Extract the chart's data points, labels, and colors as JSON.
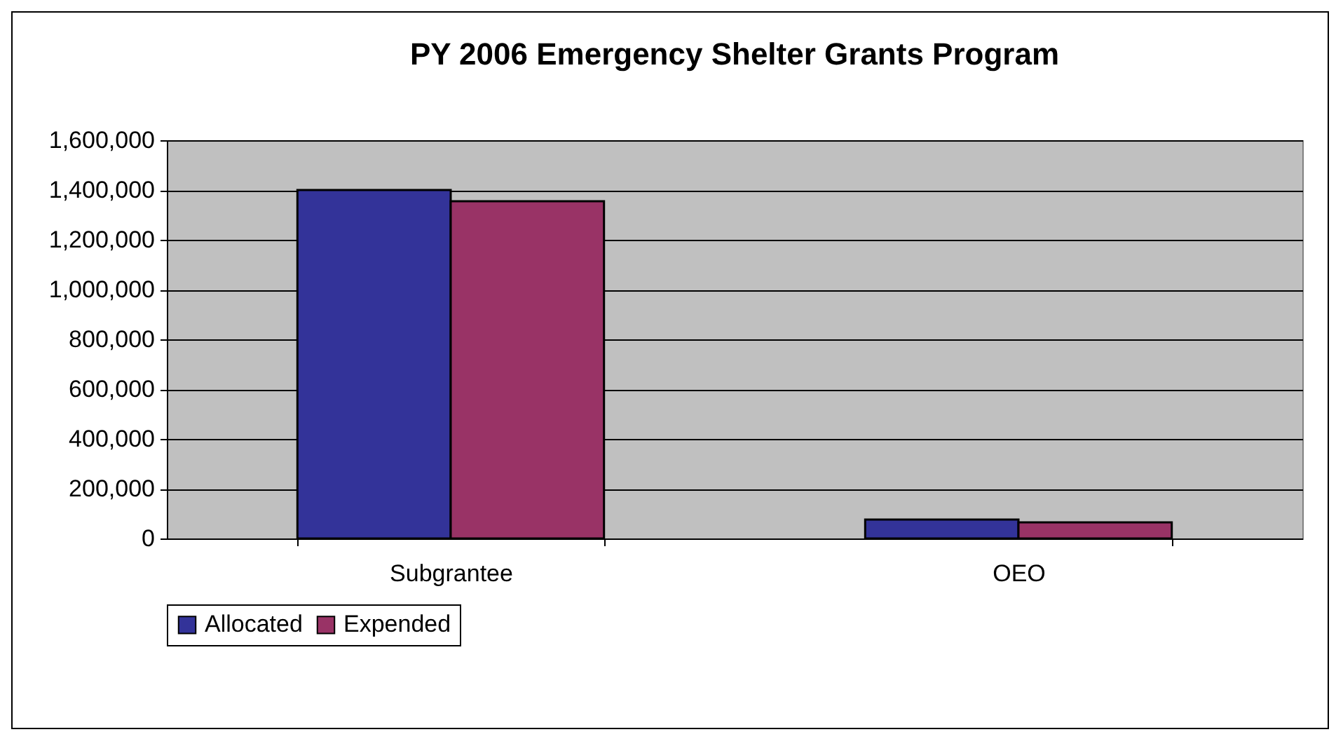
{
  "chart_data": {
    "type": "bar",
    "title": "PY 2006 Emergency Shelter Grants Program",
    "categories": [
      "Subgrantee",
      "OEO"
    ],
    "series": [
      {
        "name": "Allocated",
        "color": "#333399",
        "values": [
          1400000,
          76000
        ]
      },
      {
        "name": "Expended",
        "color": "#993366",
        "values": [
          1355000,
          65000
        ]
      }
    ],
    "ylim": [
      0,
      1600000
    ],
    "yticks": [
      {
        "value": 0,
        "label": "0"
      },
      {
        "value": 200000,
        "label": "200,000"
      },
      {
        "value": 400000,
        "label": "400,000"
      },
      {
        "value": 600000,
        "label": "600,000"
      },
      {
        "value": 800000,
        "label": "800,000"
      },
      {
        "value": 1000000,
        "label": "1,000,000"
      },
      {
        "value": 1200000,
        "label": "1,200,000"
      },
      {
        "value": 1400000,
        "label": "1,400,000"
      },
      {
        "value": 1600000,
        "label": "1,600,000"
      }
    ],
    "grid": "y",
    "legend": "bottom"
  }
}
